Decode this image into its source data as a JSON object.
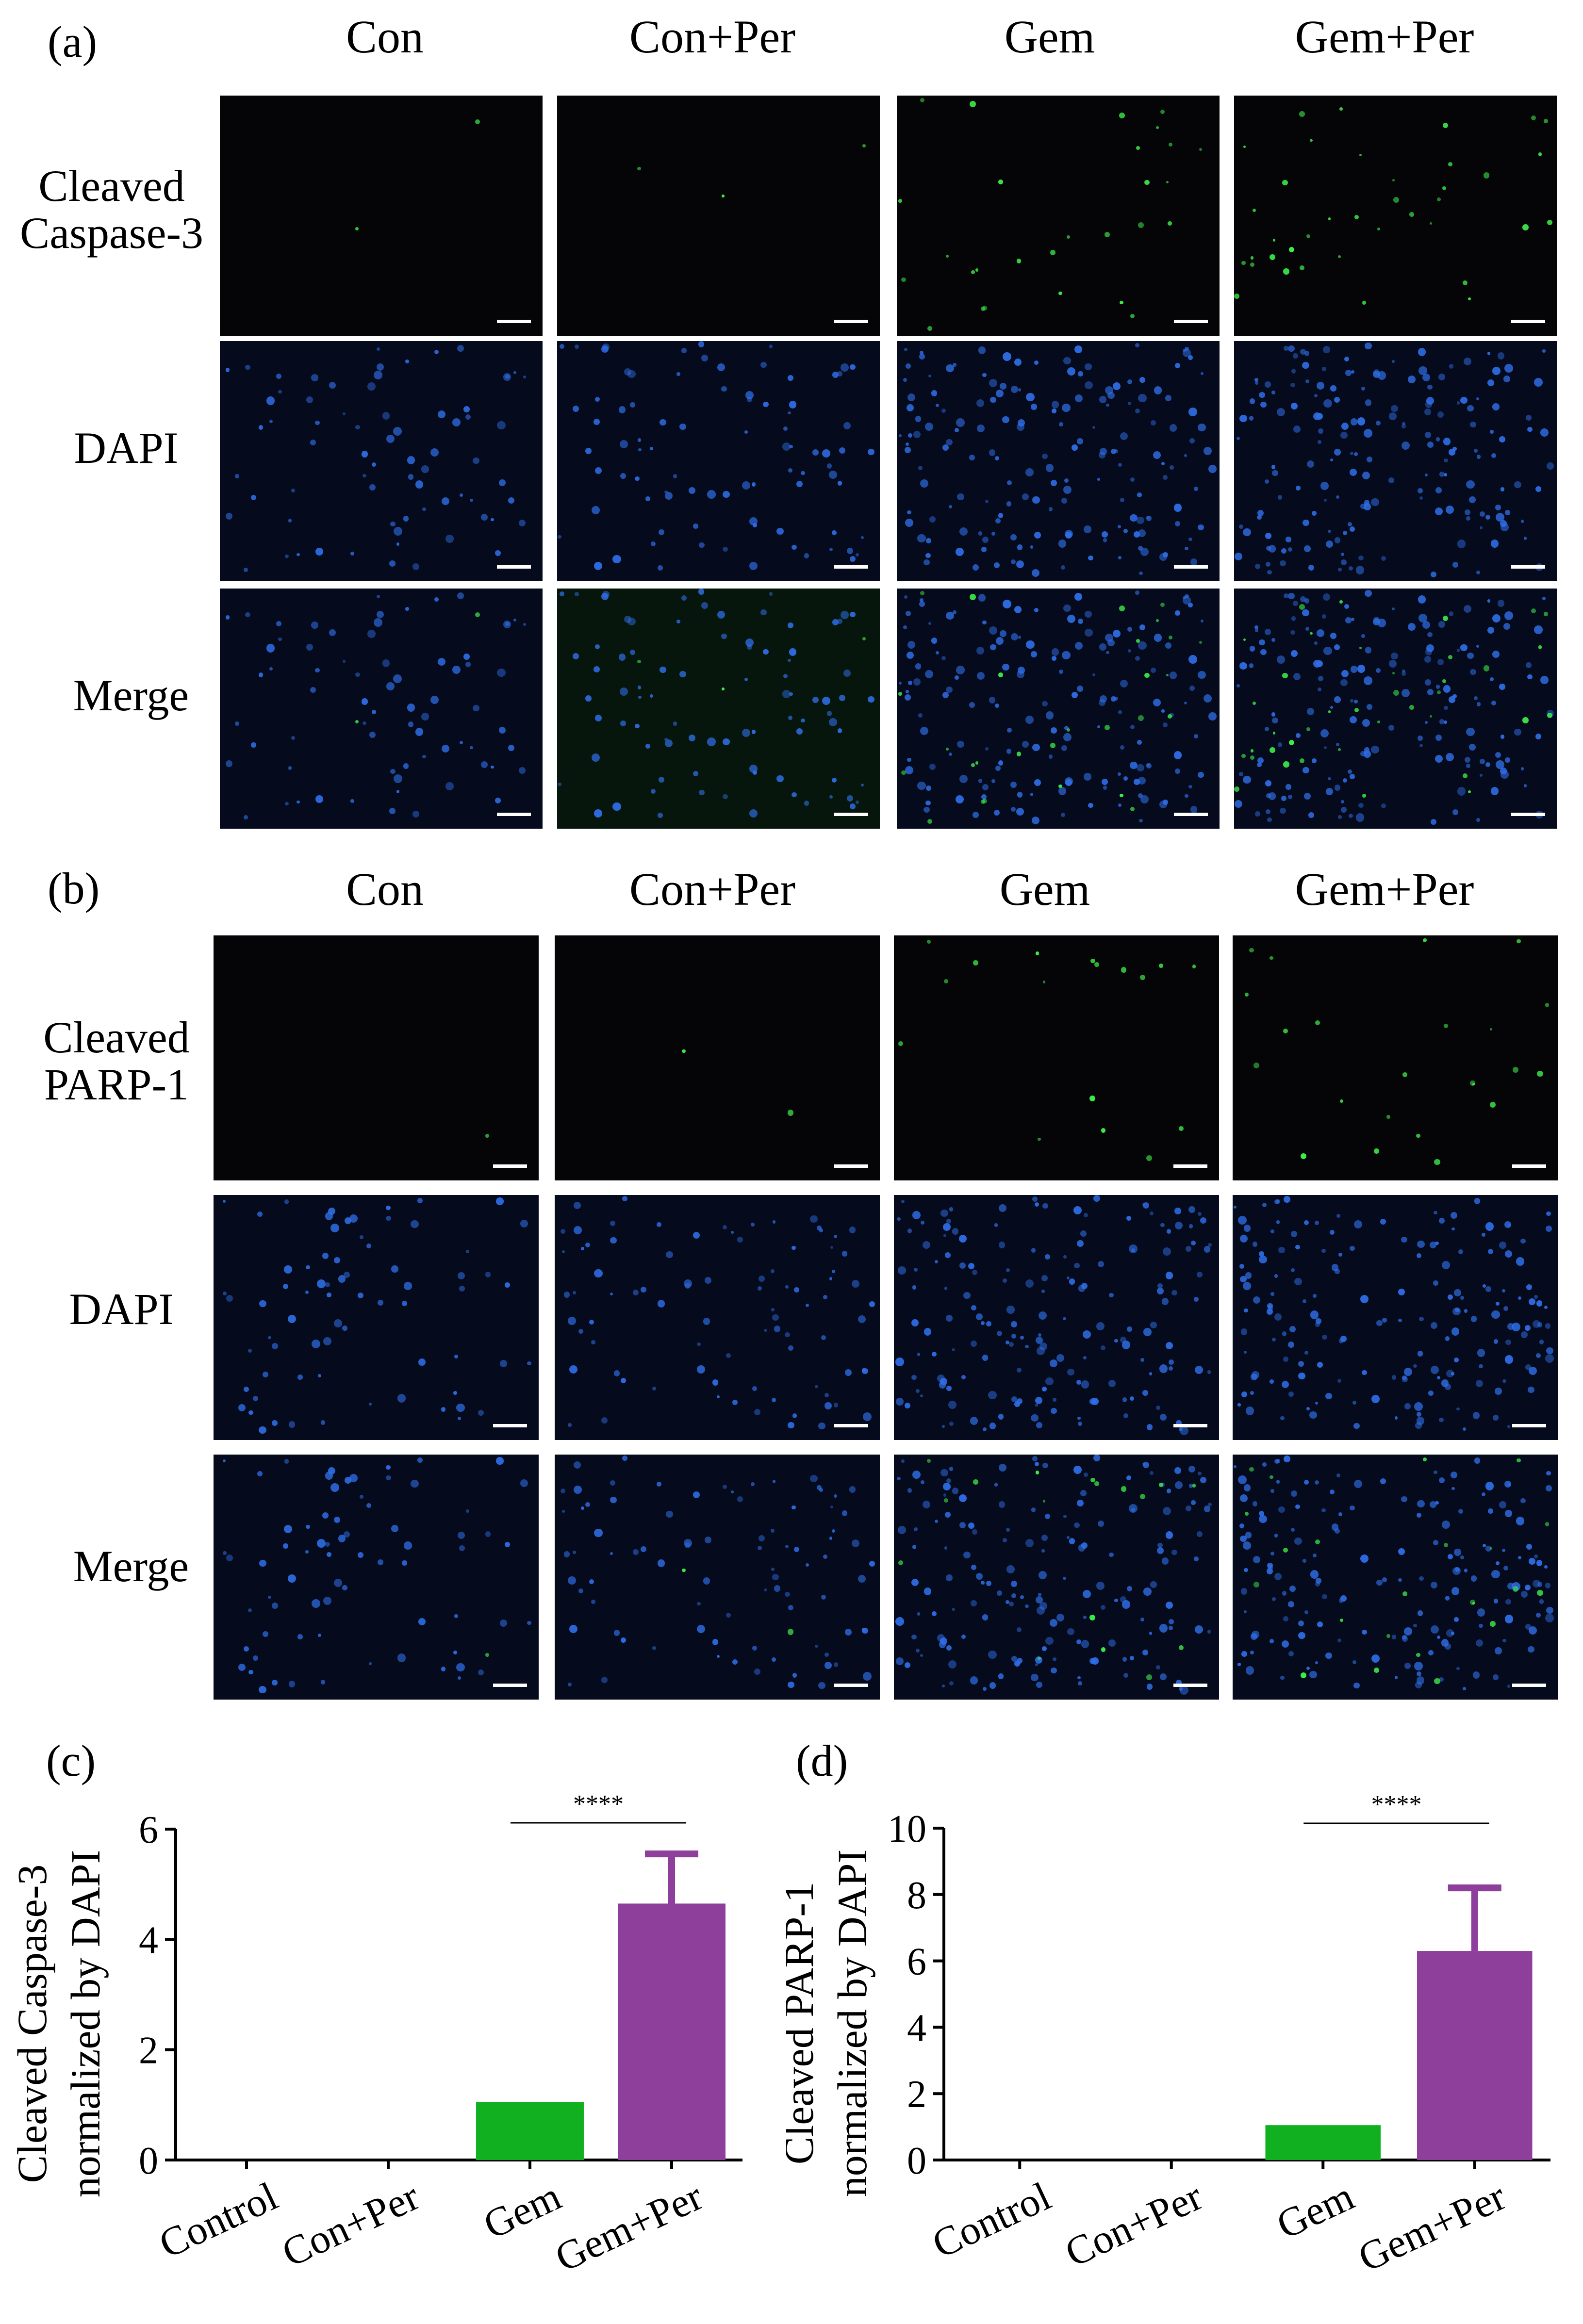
{
  "columns": [
    "Con",
    "Con+Per",
    "Gem",
    "Gem+Per"
  ],
  "panel_a": {
    "letter": "(a)",
    "rows": [
      "Cleaved\nCaspase-3",
      "DAPI",
      "Merge"
    ]
  },
  "panel_b": {
    "letter": "(b)",
    "rows": [
      "Cleaved\nPARP-1",
      "DAPI",
      "Merge"
    ]
  },
  "colors": {
    "gem_bar": "#10b020",
    "gemper_bar": "#8e3e9b",
    "dapi_blue": "#2f6fe8",
    "marker_green": "#3cf04a"
  },
  "chart_data": [
    {
      "panel": "(c)",
      "type": "bar",
      "ylabel": "Cleaved Caspase-3\nnormalized by DAPI",
      "categories": [
        "Control",
        "Con+Per",
        "Gem",
        "Gem+Per"
      ],
      "values": [
        0,
        0,
        1.05,
        4.65
      ],
      "errors": [
        0,
        0,
        0,
        0.9
      ],
      "ylim": [
        0,
        6
      ],
      "yticks": [
        0,
        2,
        4,
        6
      ],
      "significance": {
        "from": "Gem",
        "to": "Gem+Per",
        "label": "****"
      }
    },
    {
      "panel": "(d)",
      "type": "bar",
      "ylabel": "Cleaved PARP-1\nnormalized by DAPI",
      "categories": [
        "Control",
        "Con+Per",
        "Gem",
        "Gem+Per"
      ],
      "values": [
        0,
        0,
        1.05,
        6.3
      ],
      "errors": [
        0,
        0,
        0,
        1.9
      ],
      "ylim": [
        0,
        10
      ],
      "yticks": [
        0,
        2,
        4,
        6,
        8,
        10
      ],
      "significance": {
        "from": "Gem",
        "to": "Gem+Per",
        "label": "****"
      }
    }
  ]
}
